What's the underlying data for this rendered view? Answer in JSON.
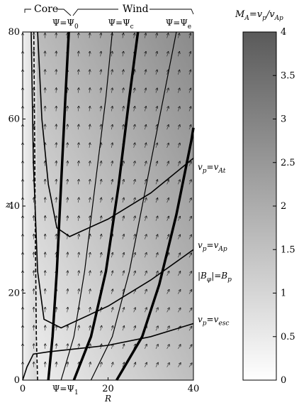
{
  "chart_data": {
    "type": "heatmap",
    "xlabel": "R",
    "ylabel": "z",
    "xlim": [
      0,
      40
    ],
    "ylim": [
      0,
      80
    ],
    "x_ticks": [
      "0",
      "20",
      "40"
    ],
    "y_ticks": [
      "0",
      "20",
      "40",
      "60",
      "80"
    ],
    "top_regions": {
      "core": "Core",
      "wind": "Wind"
    },
    "top_labels": [
      {
        "text": "Ψ=Ψ",
        "sub": "0",
        "x": 10
      },
      {
        "text": "Ψ=Ψ",
        "sub": "c",
        "x": 23
      },
      {
        "text": "Ψ=Ψ",
        "sub": "e",
        "x": 36.5
      }
    ],
    "bottom_label": {
      "text": "Ψ=Ψ",
      "sub": "1",
      "x": 10
    },
    "colorbar": {
      "title_main": "M",
      "title_sub": "A",
      "title_eq": "=v",
      "title_sub2": "p",
      "title_div": "/v",
      "title_sub3": "Ap",
      "min": 0,
      "max": 4,
      "ticks": [
        "0",
        "0.5",
        "1",
        "1.5",
        "2",
        "2.5",
        "3",
        "3.5",
        "4"
      ]
    },
    "surface_labels": [
      {
        "pre": "v",
        "psub": "p",
        "eq": "=v",
        "sub": "At",
        "y": 49
      },
      {
        "pre": "v",
        "psub": "p",
        "eq": "=v",
        "sub": "Ap",
        "y": 31
      },
      {
        "pre": "|B",
        "psub": "φ",
        "eq": "|=B",
        "sub": "p",
        "y": 24
      },
      {
        "pre": "v",
        "psub": "p",
        "eq": "=v",
        "sub": "esc",
        "y": 14
      }
    ],
    "field_lines": [
      {
        "role": "core_edge",
        "points": [
          [
            3.5,
            0
          ],
          [
            3.2,
            10
          ],
          [
            3.0,
            30
          ],
          [
            2.8,
            55
          ],
          [
            2.6,
            80
          ]
        ]
      },
      {
        "role": "psi_1_psi_0",
        "points": [
          [
            6,
            0
          ],
          [
            7,
            10
          ],
          [
            8,
            25
          ],
          [
            9,
            45
          ],
          [
            10,
            65
          ],
          [
            10.8,
            80
          ]
        ]
      },
      {
        "role": "wind",
        "points": [
          [
            9,
            0
          ],
          [
            12,
            10
          ],
          [
            14.5,
            25
          ],
          [
            17,
            45
          ],
          [
            19.5,
            65
          ],
          [
            21,
            80
          ]
        ]
      },
      {
        "role": "psi_c",
        "points": [
          [
            12,
            0
          ],
          [
            16,
            10
          ],
          [
            19.5,
            25
          ],
          [
            22.5,
            45
          ],
          [
            25,
            65
          ],
          [
            27,
            80
          ]
        ]
      },
      {
        "role": "wind",
        "points": [
          [
            16,
            0
          ],
          [
            21,
            10
          ],
          [
            25,
            25
          ],
          [
            29,
            45
          ],
          [
            33,
            65
          ],
          [
            36,
            80
          ]
        ]
      },
      {
        "role": "psi_e",
        "points": [
          [
            22,
            0
          ],
          [
            28,
            10
          ],
          [
            32,
            22
          ],
          [
            36,
            38
          ],
          [
            39.5,
            55
          ],
          [
            40,
            58
          ]
        ]
      }
    ],
    "critical_surfaces": [
      {
        "name": "fast_left",
        "points": [
          [
            3.5,
            80
          ],
          [
            4.5,
            60
          ],
          [
            6,
            45
          ],
          [
            8,
            35
          ],
          [
            11,
            33
          ],
          [
            20,
            37
          ],
          [
            30,
            43
          ],
          [
            40,
            51
          ]
        ]
      },
      {
        "name": "alfven",
        "points": [
          [
            2,
            80
          ],
          [
            2.5,
            50
          ],
          [
            3.5,
            25
          ],
          [
            5,
            14
          ],
          [
            9,
            12
          ],
          [
            20,
            17
          ],
          [
            30,
            23
          ],
          [
            40,
            30
          ]
        ]
      },
      {
        "name": "escape",
        "points": [
          [
            0,
            0
          ],
          [
            1,
            3
          ],
          [
            2.5,
            6
          ],
          [
            6,
            6.5
          ],
          [
            20,
            8
          ],
          [
            30,
            10
          ],
          [
            40,
            13
          ]
        ]
      }
    ]
  }
}
